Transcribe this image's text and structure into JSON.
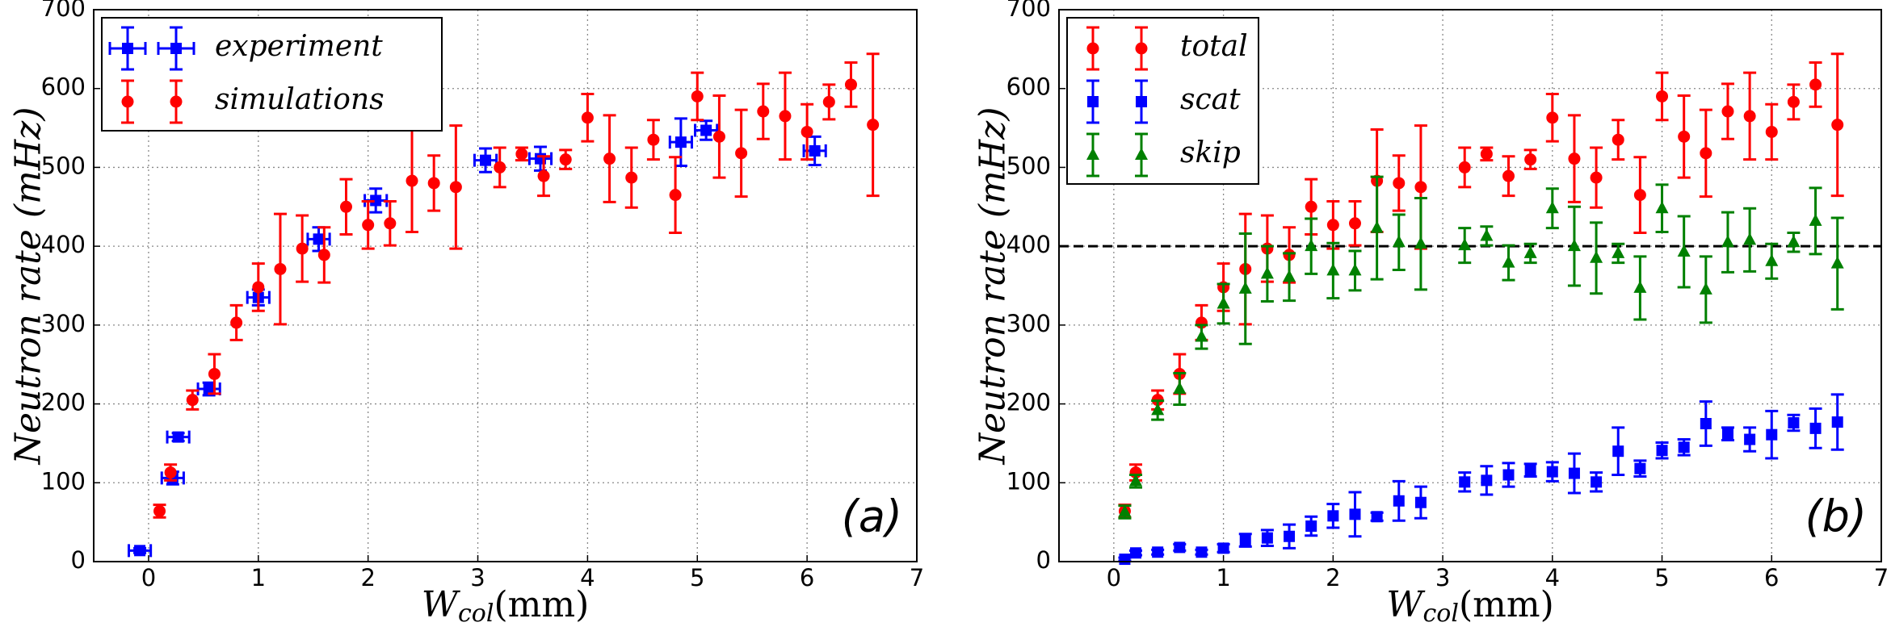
{
  "chart_data": [
    {
      "type": "errorbar",
      "panel_label": "(a)",
      "ylabel": "Neutron rate (mHz)",
      "xlabel": {
        "main": "W",
        "sub": "col",
        "unit": "(mm)"
      },
      "xlim": [
        -0.5,
        7
      ],
      "xticks": [
        0,
        1,
        2,
        3,
        4,
        5,
        6,
        7
      ],
      "ylim": [
        0,
        700
      ],
      "yticks": [
        0,
        100,
        200,
        300,
        400,
        500,
        600,
        700
      ],
      "grid": true,
      "legend": "upper left",
      "series": [
        {
          "name": "experiment",
          "color": "#0000ff",
          "marker": "square",
          "x": [
            -0.08,
            0.22,
            0.27,
            0.55,
            1.0,
            1.55,
            2.07,
            3.07,
            3.57,
            4.85,
            5.08,
            6.07
          ],
          "xerrors": [
            0.1,
            0.1,
            0.1,
            0.1,
            0.1,
            0.1,
            0.1,
            0.1,
            0.1,
            0.1,
            0.1,
            0.1
          ],
          "values": [
            14,
            106,
            158,
            219,
            335,
            409,
            458,
            509,
            511,
            532,
            547,
            521
          ],
          "errors": [
            3,
            8,
            5,
            8,
            10,
            15,
            15,
            15,
            15,
            30,
            12,
            18
          ]
        },
        {
          "name": "simulations",
          "color": "#ff0000",
          "marker": "circle",
          "x": [
            0.1,
            0.2,
            0.4,
            0.6,
            0.8,
            1.0,
            1.2,
            1.4,
            1.6,
            1.8,
            2.0,
            2.2,
            2.4,
            2.6,
            2.8,
            3.2,
            3.4,
            3.6,
            3.8,
            4.0,
            4.2,
            4.4,
            4.6,
            4.8,
            5.0,
            5.2,
            5.4,
            5.6,
            5.8,
            6.0,
            6.2,
            6.4,
            6.6
          ],
          "values": [
            64,
            113,
            205,
            238,
            303,
            348,
            371,
            397,
            389,
            450,
            427,
            429,
            483,
            480,
            475,
            500,
            517,
            489,
            510,
            563,
            511,
            487,
            535,
            465,
            590,
            539,
            518,
            571,
            565,
            545,
            583,
            605,
            554
          ],
          "errors": [
            8,
            10,
            12,
            25,
            22,
            30,
            70,
            42,
            35,
            35,
            30,
            28,
            65,
            35,
            78,
            25,
            8,
            25,
            12,
            30,
            55,
            38,
            25,
            48,
            30,
            52,
            55,
            35,
            55,
            35,
            22,
            28,
            90
          ]
        }
      ]
    },
    {
      "type": "errorbar",
      "panel_label": "(b)",
      "ylabel": "Neutron rate (mHz)",
      "xlabel": {
        "main": "W",
        "sub": "col",
        "unit": "(mm)"
      },
      "xlim": [
        -0.5,
        7
      ],
      "xticks": [
        0,
        1,
        2,
        3,
        4,
        5,
        6,
        7
      ],
      "ylim": [
        0,
        700
      ],
      "yticks": [
        0,
        100,
        200,
        300,
        400,
        500,
        600,
        700
      ],
      "grid": true,
      "legend": "upper left",
      "hline": {
        "value": 400,
        "style": "dashed",
        "color": "#000000"
      },
      "series": [
        {
          "name": "total",
          "color": "#ff0000",
          "marker": "circle",
          "x": [
            0.1,
            0.2,
            0.4,
            0.6,
            0.8,
            1.0,
            1.2,
            1.4,
            1.6,
            1.8,
            2.0,
            2.2,
            2.4,
            2.6,
            2.8,
            3.2,
            3.4,
            3.6,
            3.8,
            4.0,
            4.2,
            4.4,
            4.6,
            4.8,
            5.0,
            5.2,
            5.4,
            5.6,
            5.8,
            6.0,
            6.2,
            6.4,
            6.6
          ],
          "values": [
            64,
            113,
            205,
            238,
            303,
            348,
            371,
            397,
            389,
            450,
            427,
            429,
            483,
            480,
            475,
            500,
            517,
            489,
            510,
            563,
            511,
            487,
            535,
            465,
            590,
            539,
            518,
            571,
            565,
            545,
            583,
            605,
            554
          ],
          "errors": [
            8,
            10,
            12,
            25,
            22,
            30,
            70,
            42,
            35,
            35,
            30,
            28,
            65,
            35,
            78,
            25,
            8,
            25,
            12,
            30,
            55,
            38,
            25,
            48,
            30,
            52,
            55,
            35,
            55,
            35,
            22,
            28,
            90
          ]
        },
        {
          "name": "scat",
          "color": "#0000ff",
          "marker": "square",
          "x": [
            0.1,
            0.2,
            0.4,
            0.6,
            0.8,
            1.0,
            1.2,
            1.4,
            1.6,
            1.8,
            2.0,
            2.2,
            2.4,
            2.6,
            2.8,
            3.2,
            3.4,
            3.6,
            3.8,
            4.0,
            4.2,
            4.4,
            4.6,
            4.8,
            5.0,
            5.2,
            5.4,
            5.6,
            5.8,
            6.0,
            6.2,
            6.4,
            6.6
          ],
          "values": [
            3,
            11,
            12,
            18,
            12,
            17,
            27,
            30,
            32,
            45,
            58,
            60,
            57,
            77,
            75,
            101,
            103,
            110,
            116,
            114,
            112,
            101,
            140,
            118,
            141,
            145,
            175,
            162,
            155,
            161,
            176,
            169,
            177
          ],
          "errors": [
            2,
            3,
            3,
            4,
            3,
            5,
            8,
            10,
            15,
            12,
            15,
            28,
            5,
            25,
            20,
            12,
            18,
            15,
            8,
            12,
            25,
            12,
            30,
            10,
            10,
            10,
            28,
            8,
            15,
            30,
            10,
            25,
            35
          ]
        },
        {
          "name": "skip",
          "color": "#008000",
          "marker": "triangle",
          "x": [
            0.1,
            0.2,
            0.4,
            0.6,
            0.8,
            1.0,
            1.2,
            1.4,
            1.6,
            1.8,
            2.0,
            2.2,
            2.4,
            2.6,
            2.8,
            3.2,
            3.4,
            3.6,
            3.8,
            4.0,
            4.2,
            4.4,
            4.6,
            4.8,
            5.0,
            5.2,
            5.4,
            5.6,
            5.8,
            6.0,
            6.2,
            6.4,
            6.6
          ],
          "values": [
            63,
            102,
            192,
            219,
            285,
            327,
            346,
            365,
            361,
            400,
            369,
            369,
            423,
            405,
            403,
            401,
            413,
            379,
            391,
            448,
            400,
            385,
            391,
            347,
            448,
            393,
            345,
            405,
            408,
            381,
            405,
            432,
            378
          ],
          "errors": [
            8,
            8,
            12,
            20,
            15,
            25,
            70,
            35,
            30,
            35,
            35,
            25,
            65,
            35,
            58,
            22,
            12,
            22,
            12,
            25,
            50,
            45,
            12,
            40,
            30,
            45,
            42,
            38,
            40,
            22,
            12,
            42,
            58
          ]
        }
      ]
    }
  ]
}
